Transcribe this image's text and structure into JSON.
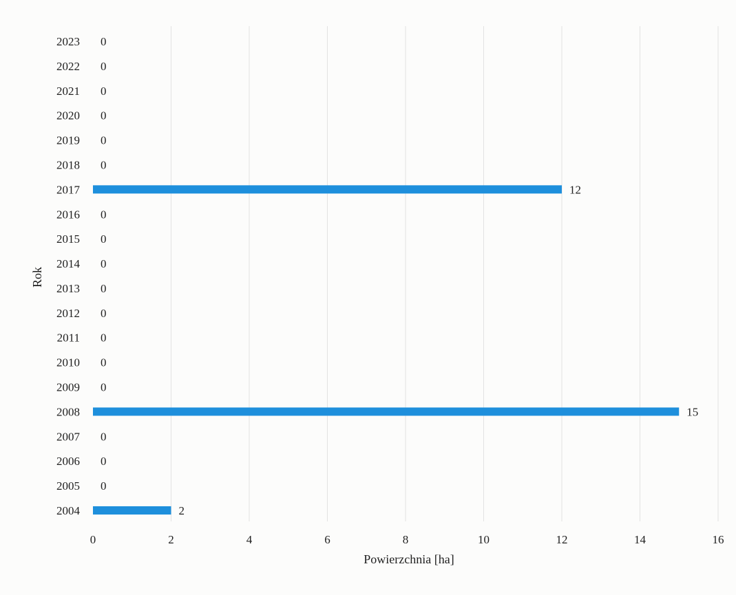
{
  "chart_data": {
    "type": "bar",
    "orientation": "horizontal",
    "categories": [
      "2004",
      "2005",
      "2006",
      "2007",
      "2008",
      "2009",
      "2010",
      "2011",
      "2012",
      "2013",
      "2014",
      "2015",
      "2016",
      "2017",
      "2018",
      "2019",
      "2020",
      "2021",
      "2022",
      "2023"
    ],
    "values": [
      2,
      0,
      0,
      0,
      15,
      0,
      0,
      0,
      0,
      0,
      0,
      0,
      0,
      12,
      0,
      0,
      0,
      0,
      0,
      0
    ],
    "data_labels": [
      "2",
      "0",
      "0",
      "0",
      "15",
      "0",
      "0",
      "0",
      "0",
      "0",
      "0",
      "0",
      "0",
      "12",
      "0",
      "0",
      "0",
      "0",
      "0",
      "0"
    ],
    "xlabel": "Powierzchnia [ha]",
    "ylabel": "Rok",
    "xlim": [
      0,
      16
    ],
    "xticks": [
      "0",
      "2",
      "4",
      "6",
      "8",
      "10",
      "12",
      "14",
      "16"
    ],
    "grid": "vertical",
    "legend": "none",
    "bar_color": "#1e8fdc"
  }
}
